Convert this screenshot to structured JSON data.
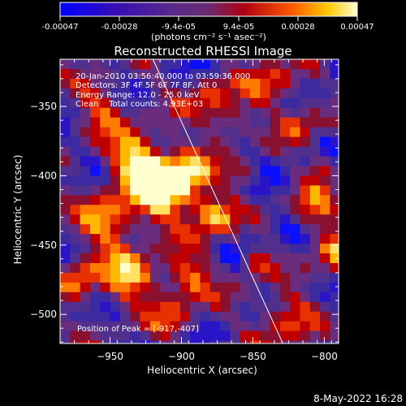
{
  "colorbar": {
    "tick_labels": [
      "-0.00047",
      "-0.00028",
      "-9.4e-05",
      "9.4e-05",
      "0.00028",
      "0.00047"
    ],
    "range": [
      -0.00047,
      0.00047
    ],
    "units": "(photons cm⁻² s⁻¹ asec⁻²)"
  },
  "chart_data": {
    "type": "heatmap",
    "title": "Reconstructed RHESSI Image",
    "xlabel": "Heliocentric X (arcsec)",
    "ylabel": "Heliocentric Y (arcsec)",
    "xlim": [
      -985,
      -790
    ],
    "ylim": [
      -521,
      -316
    ],
    "xticks": [
      -950,
      -900,
      -850,
      -800
    ],
    "yticks": [
      -350,
      -400,
      -450,
      -500
    ],
    "annotations": [
      "20-Jan-2010 03:56:40.000 to 03:59:36.000",
      "Detectors: 3F 4F 5F 6F 7F 8F, Att 0",
      "Energy Range: 12.0 - 25.0 keV",
      "Clean    Total counts: 4.93E+03"
    ],
    "peak_label": "Position of Peak = [-917,-407]",
    "peak": [
      -917,
      -407
    ],
    "limb_line": [
      [
        -920,
        -316
      ],
      [
        -829,
        -521
      ]
    ],
    "colors": [
      "#0000ff",
      "#3300aa",
      "#5a1a8a",
      "#7a2a9a",
      "#c00000",
      "#ff6600",
      "#ffcc00",
      "#ffffcc"
    ]
  },
  "footer": {
    "timestamp": "8-May-2022 16:28"
  }
}
